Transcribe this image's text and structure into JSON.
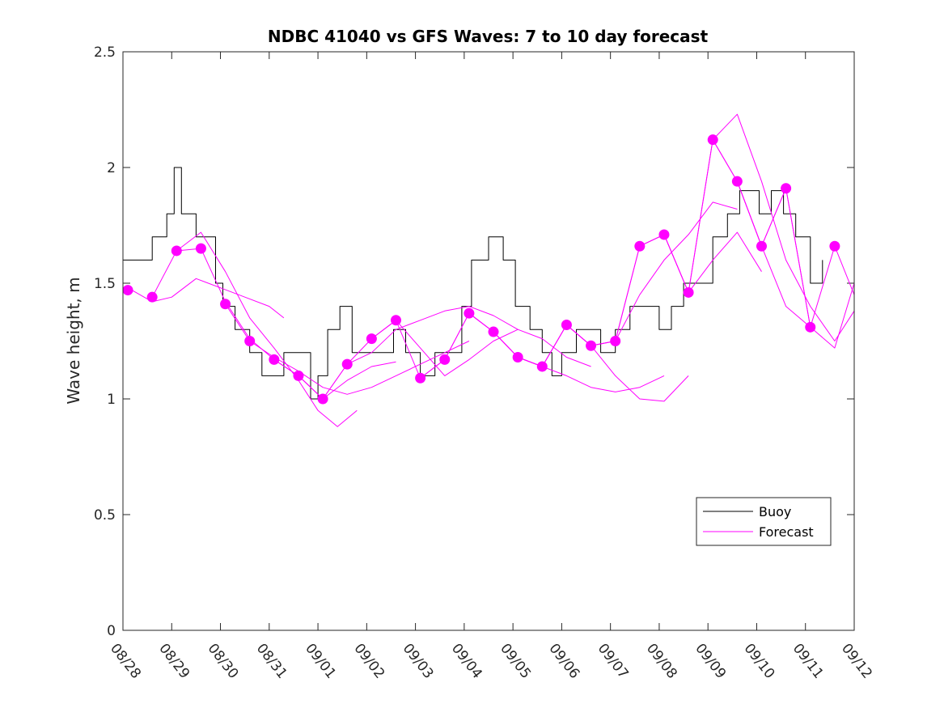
{
  "chart_data": {
    "type": "line",
    "title": "NDBC 41040 vs GFS Waves: 7 to 10 day forecast",
    "xlabel": "",
    "ylabel": "Wave height, m",
    "x_unit": "days since 08/28",
    "xlim": [
      0,
      15
    ],
    "ylim": [
      0,
      2.5
    ],
    "xticks": [
      0,
      1,
      2,
      3,
      4,
      5,
      6,
      7,
      8,
      9,
      10,
      11,
      12,
      13,
      14,
      15
    ],
    "xtick_labels": [
      "08/28",
      "08/29",
      "08/30",
      "08/31",
      "09/01",
      "09/02",
      "09/03",
      "09/04",
      "09/05",
      "09/06",
      "09/07",
      "09/08",
      "09/09",
      "09/10",
      "09/11",
      "09/12"
    ],
    "yticks": [
      0,
      0.5,
      1,
      1.5,
      2,
      2.5
    ],
    "ytick_labels": [
      "0",
      "0.5",
      "1",
      "1.5",
      "2",
      "2.5"
    ],
    "colors": {
      "buoy": "#000000",
      "forecast": "#ff00ff"
    },
    "legend": {
      "position": "bottom-right",
      "entries": [
        {
          "label": "Buoy",
          "color": "#000000"
        },
        {
          "label": "Forecast",
          "color": "#ff00ff"
        }
      ]
    },
    "series": [
      {
        "name": "Buoy",
        "style": "step",
        "x": [
          0,
          0.3,
          0.6,
          0.9,
          1.05,
          1.2,
          1.5,
          1.75,
          1.9,
          2.05,
          2.3,
          2.6,
          2.85,
          3.0,
          3.3,
          3.6,
          3.85,
          4.0,
          4.2,
          4.45,
          4.7,
          5.0,
          5.3,
          5.55,
          5.8,
          6.1,
          6.4,
          6.7,
          6.95,
          7.15,
          7.5,
          7.8,
          8.05,
          8.35,
          8.6,
          8.8,
          9.0,
          9.3,
          9.6,
          9.8,
          10.1,
          10.4,
          10.7,
          11.0,
          11.25,
          11.5,
          11.8,
          12.1,
          12.4,
          12.65,
          12.85,
          13.05,
          13.3,
          13.55,
          13.8,
          14.1,
          14.35
        ],
        "y": [
          1.6,
          1.6,
          1.7,
          1.8,
          2.0,
          1.8,
          1.7,
          1.7,
          1.5,
          1.4,
          1.3,
          1.2,
          1.1,
          1.1,
          1.2,
          1.2,
          1.0,
          1.1,
          1.3,
          1.4,
          1.2,
          1.2,
          1.2,
          1.3,
          1.2,
          1.1,
          1.2,
          1.2,
          1.4,
          1.6,
          1.7,
          1.6,
          1.4,
          1.3,
          1.2,
          1.1,
          1.2,
          1.3,
          1.3,
          1.2,
          1.3,
          1.4,
          1.4,
          1.3,
          1.4,
          1.5,
          1.5,
          1.7,
          1.8,
          1.9,
          1.9,
          1.8,
          1.9,
          1.8,
          1.7,
          1.5,
          1.6
        ]
      },
      {
        "name": "Forecast",
        "x": [
          0.1,
          0.6,
          1.0,
          1.5,
          2.0,
          2.5,
          3.0,
          3.3
        ],
        "y": [
          1.48,
          1.42,
          1.44,
          1.52,
          1.48,
          1.44,
          1.4,
          1.35
        ]
      },
      {
        "name": "Forecast",
        "x": [
          0.6,
          1.1,
          1.6,
          2.1,
          2.6,
          3.1,
          3.6,
          4.0,
          4.4,
          4.8
        ],
        "y": [
          1.44,
          1.64,
          1.72,
          1.55,
          1.35,
          1.22,
          1.08,
          0.95,
          0.88,
          0.95
        ]
      },
      {
        "name": "Forecast",
        "x": [
          1.1,
          1.6,
          2.1,
          2.6,
          3.1,
          3.6,
          4.1,
          4.6,
          5.1,
          5.6
        ],
        "y": [
          1.64,
          1.65,
          1.42,
          1.26,
          1.17,
          1.1,
          1.0,
          1.08,
          1.14,
          1.16
        ]
      },
      {
        "name": "Forecast",
        "x": [
          2.1,
          2.6,
          3.1,
          3.6,
          4.1,
          4.6,
          5.1,
          5.6,
          6.1,
          6.6,
          7.1
        ],
        "y": [
          1.41,
          1.25,
          1.18,
          1.12,
          1.05,
          1.02,
          1.05,
          1.1,
          1.15,
          1.2,
          1.25
        ]
      },
      {
        "name": "Forecast",
        "x": [
          3.1,
          3.6,
          4.1,
          4.6,
          5.1,
          5.6,
          6.1,
          6.6,
          7.1,
          7.6,
          8.1
        ],
        "y": [
          1.17,
          1.1,
          1.0,
          1.15,
          1.2,
          1.3,
          1.34,
          1.38,
          1.4,
          1.36,
          1.3
        ]
      },
      {
        "name": "Forecast",
        "x": [
          4.1,
          4.6,
          5.1,
          5.6,
          6.1,
          6.6,
          7.1,
          7.6,
          8.1,
          8.6,
          9.1,
          9.6
        ],
        "y": [
          1.0,
          1.15,
          1.26,
          1.34,
          1.22,
          1.1,
          1.17,
          1.25,
          1.3,
          1.26,
          1.18,
          1.14
        ]
      },
      {
        "name": "Forecast",
        "x": [
          5.1,
          5.6,
          6.1,
          6.6,
          7.1,
          7.6,
          8.1,
          8.6,
          9.1,
          9.6,
          10.1,
          10.6,
          11.1
        ],
        "y": [
          1.26,
          1.34,
          1.09,
          1.17,
          1.37,
          1.29,
          1.18,
          1.14,
          1.1,
          1.05,
          1.03,
          1.05,
          1.1
        ]
      },
      {
        "name": "Forecast",
        "x": [
          6.1,
          6.6,
          7.1,
          7.6,
          8.1,
          8.6,
          9.1,
          9.6,
          10.1,
          10.6,
          11.1,
          11.6
        ],
        "y": [
          1.09,
          1.17,
          1.37,
          1.29,
          1.18,
          1.14,
          1.32,
          1.23,
          1.1,
          1.0,
          0.99,
          1.1
        ]
      },
      {
        "name": "Forecast",
        "x": [
          7.1,
          7.6,
          8.1,
          8.6,
          9.1,
          9.6,
          10.1,
          10.6,
          11.1,
          11.6,
          12.1,
          12.6
        ],
        "y": [
          1.37,
          1.29,
          1.18,
          1.14,
          1.32,
          1.23,
          1.25,
          1.45,
          1.6,
          1.71,
          1.85,
          1.82
        ]
      },
      {
        "name": "Forecast",
        "x": [
          8.1,
          8.6,
          9.1,
          9.6,
          10.1,
          10.6,
          11.1,
          11.6,
          12.1,
          12.6,
          13.1
        ],
        "y": [
          1.18,
          1.14,
          1.32,
          1.23,
          1.25,
          1.66,
          1.71,
          1.46,
          1.6,
          1.72,
          1.55
        ]
      },
      {
        "name": "Forecast",
        "x": [
          9.1,
          9.6,
          10.1,
          10.6,
          11.1,
          11.6,
          12.1,
          12.6,
          13.1,
          13.6,
          14.1
        ],
        "y": [
          1.32,
          1.23,
          1.25,
          1.66,
          1.71,
          1.46,
          2.12,
          1.94,
          1.66,
          1.4,
          1.31
        ]
      },
      {
        "name": "Forecast",
        "x": [
          10.6,
          11.1,
          11.6,
          12.1,
          12.6,
          13.1,
          13.6,
          14.1,
          14.6,
          15.0
        ],
        "y": [
          1.66,
          1.71,
          1.46,
          2.12,
          2.23,
          1.94,
          1.6,
          1.4,
          1.25,
          1.38
        ]
      },
      {
        "name": "Forecast",
        "x": [
          12.1,
          12.6,
          13.1,
          13.6,
          14.1,
          14.6,
          15.0
        ],
        "y": [
          2.12,
          1.94,
          1.66,
          1.91,
          1.31,
          1.22,
          1.5
        ]
      },
      {
        "name": "Forecast",
        "x": [
          12.6,
          13.1,
          13.6,
          14.1,
          14.6,
          15.0
        ],
        "y": [
          1.94,
          1.66,
          1.91,
          1.31,
          1.66,
          1.45
        ]
      }
    ],
    "markers": {
      "name": "Forecast initialization points",
      "color": "#ff00ff",
      "x": [
        0.1,
        0.6,
        1.1,
        1.6,
        2.1,
        2.6,
        3.1,
        3.6,
        4.1,
        4.6,
        5.1,
        5.6,
        6.1,
        6.6,
        7.1,
        7.6,
        8.1,
        8.6,
        9.1,
        9.6,
        10.1,
        10.6,
        11.1,
        11.6,
        12.1,
        12.6,
        13.1,
        13.6,
        14.1,
        14.6
      ],
      "y": [
        1.47,
        1.44,
        1.64,
        1.65,
        1.41,
        1.25,
        1.17,
        1.1,
        1.0,
        1.15,
        1.26,
        1.34,
        1.09,
        1.17,
        1.37,
        1.29,
        1.18,
        1.14,
        1.32,
        1.23,
        1.25,
        1.66,
        1.71,
        1.46,
        2.12,
        1.94,
        1.66,
        1.91,
        1.31,
        1.66
      ]
    }
  }
}
